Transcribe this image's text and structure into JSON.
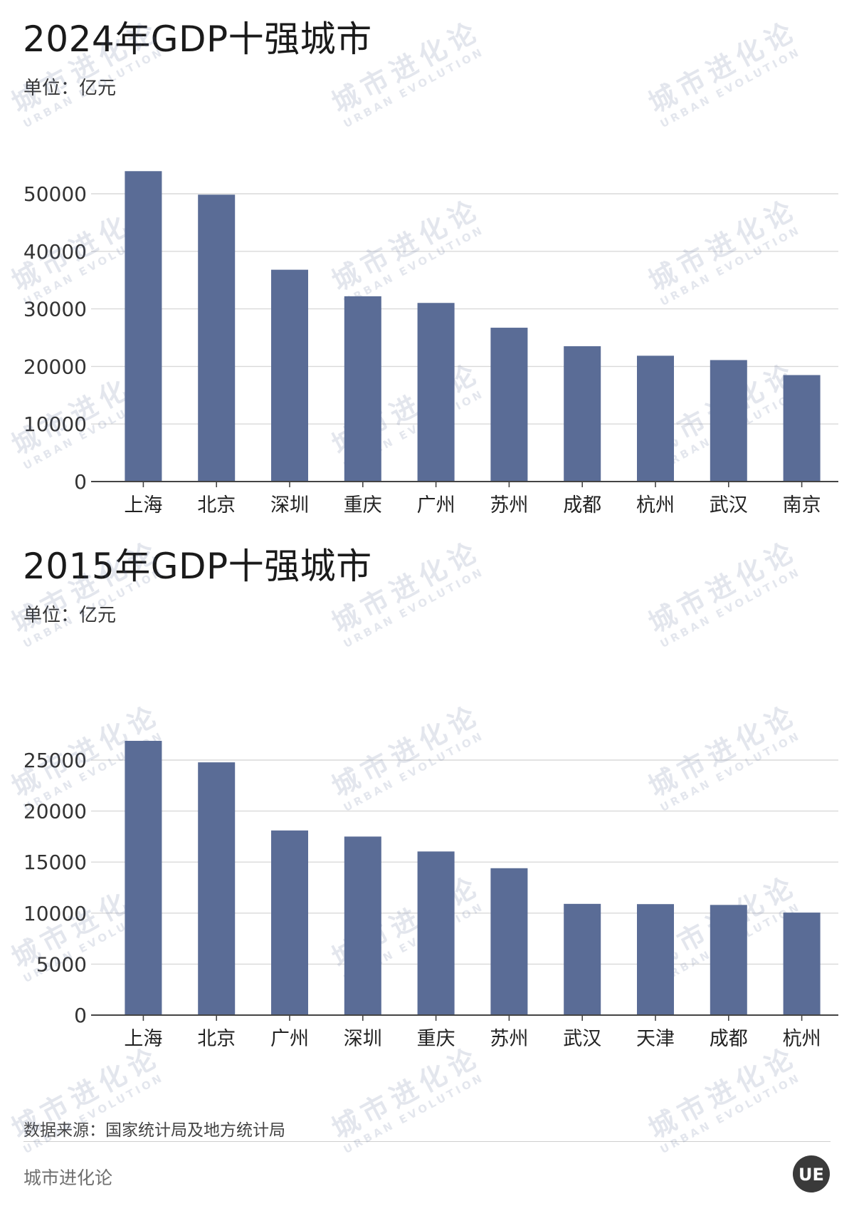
{
  "colors": {
    "bar": "#5a6c96",
    "grid": "#d9d9d9",
    "axis": "#444444",
    "watermark": "#5a6c96"
  },
  "watermark": {
    "cn": "城市进化论",
    "en": "URBAN EVOLUTION"
  },
  "charts": [
    {
      "title": "2024年GDP十强城市",
      "unit": "单位：亿元"
    },
    {
      "title": "2015年GDP十强城市",
      "unit": "单位：亿元"
    }
  ],
  "chart_data": [
    {
      "type": "bar",
      "title": "2024年GDP十强城市",
      "subtitle": "单位：亿元",
      "categories": [
        "上海",
        "北京",
        "深圳",
        "重庆",
        "广州",
        "苏州",
        "成都",
        "杭州",
        "武汉",
        "南京"
      ],
      "values": [
        53927,
        49843,
        36802,
        32193,
        31033,
        26727,
        23511,
        21860,
        21106,
        18500
      ],
      "ylim": [
        0,
        50000
      ],
      "yticks": [
        0,
        10000,
        20000,
        30000,
        40000,
        50000
      ],
      "grid": true,
      "legend": "none"
    },
    {
      "type": "bar",
      "title": "2015年GDP十强城市",
      "subtitle": "单位：亿元",
      "categories": [
        "上海",
        "北京",
        "广州",
        "深圳",
        "重庆",
        "苏州",
        "武汉",
        "天津",
        "成都",
        "杭州"
      ],
      "values": [
        26887,
        24779,
        18100,
        17503,
        16040,
        14400,
        10905,
        10880,
        10801,
        10050
      ],
      "ylim": [
        0,
        25000
      ],
      "yticks": [
        0,
        5000,
        10000,
        15000,
        20000,
        25000
      ],
      "grid": true,
      "legend": "none"
    }
  ],
  "footer": {
    "source": "数据来源：国家统计局及地方统计局",
    "brand": "城市进化论",
    "logo_text": "UE"
  }
}
